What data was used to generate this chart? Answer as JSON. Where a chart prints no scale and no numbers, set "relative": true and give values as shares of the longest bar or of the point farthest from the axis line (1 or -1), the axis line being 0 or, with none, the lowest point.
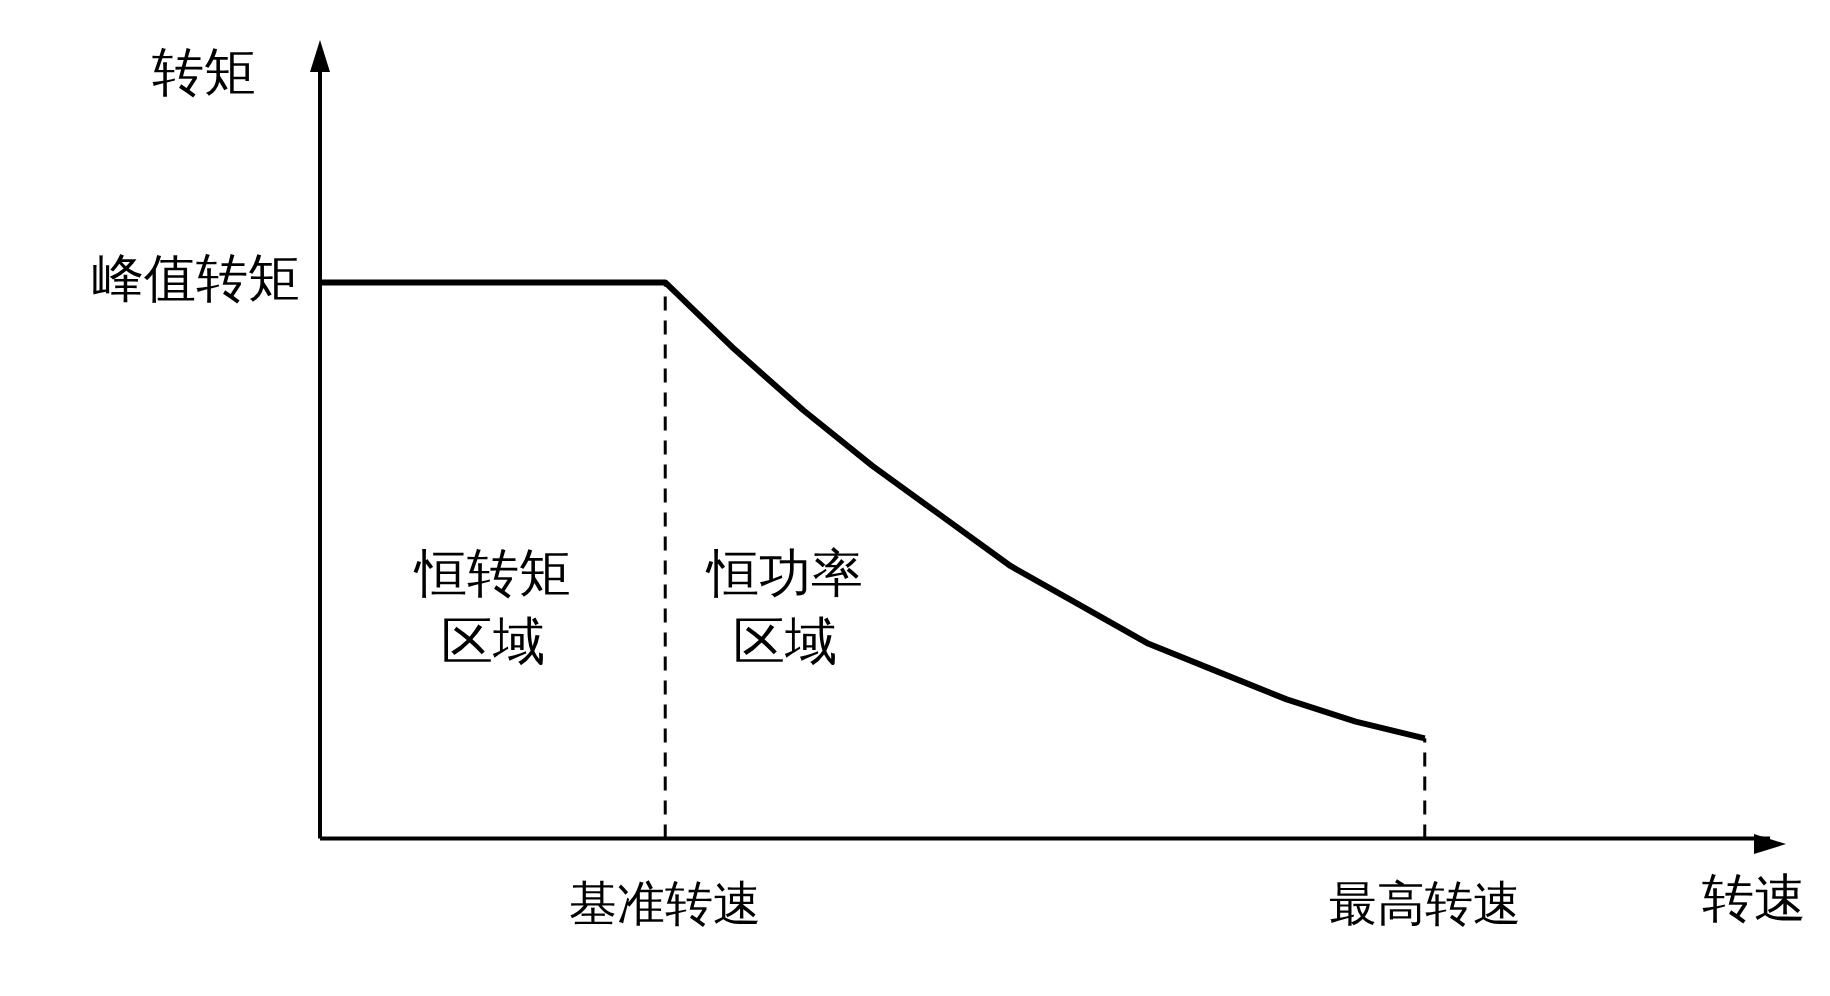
{
  "chart_data": {
    "type": "line",
    "relative": true,
    "xlabel": "转速",
    "ylabel": "转矩",
    "categories": [
      null,
      null,
      null,
      null,
      null,
      "基准转速",
      null,
      null,
      null,
      null,
      null,
      null,
      null,
      null,
      null,
      null,
      "最高转速",
      null,
      null,
      null,
      null,
      null
    ],
    "series": [
      {
        "color": "#000000",
        "values": [
          1,
          1,
          1,
          1,
          1,
          1,
          0.88,
          0.77,
          0.67,
          0.58,
          0.49,
          0.42,
          0.35,
          0.3,
          0.25,
          0.21,
          0.18,
          null,
          null,
          null,
          null,
          null
        ]
      }
    ],
    "ref_lines": [
      {
        "axis": "x",
        "value": "基准转速",
        "line_style": "dashed"
      },
      {
        "axis": "x",
        "value": "最高转速",
        "line_style": "dashed"
      }
    ],
    "annotations": [
      "恒转矩区域",
      "恒功率区域",
      "峰值转矩"
    ],
    "marker": "none",
    "line_style": "solid",
    "grid": false,
    "legend": false
  }
}
